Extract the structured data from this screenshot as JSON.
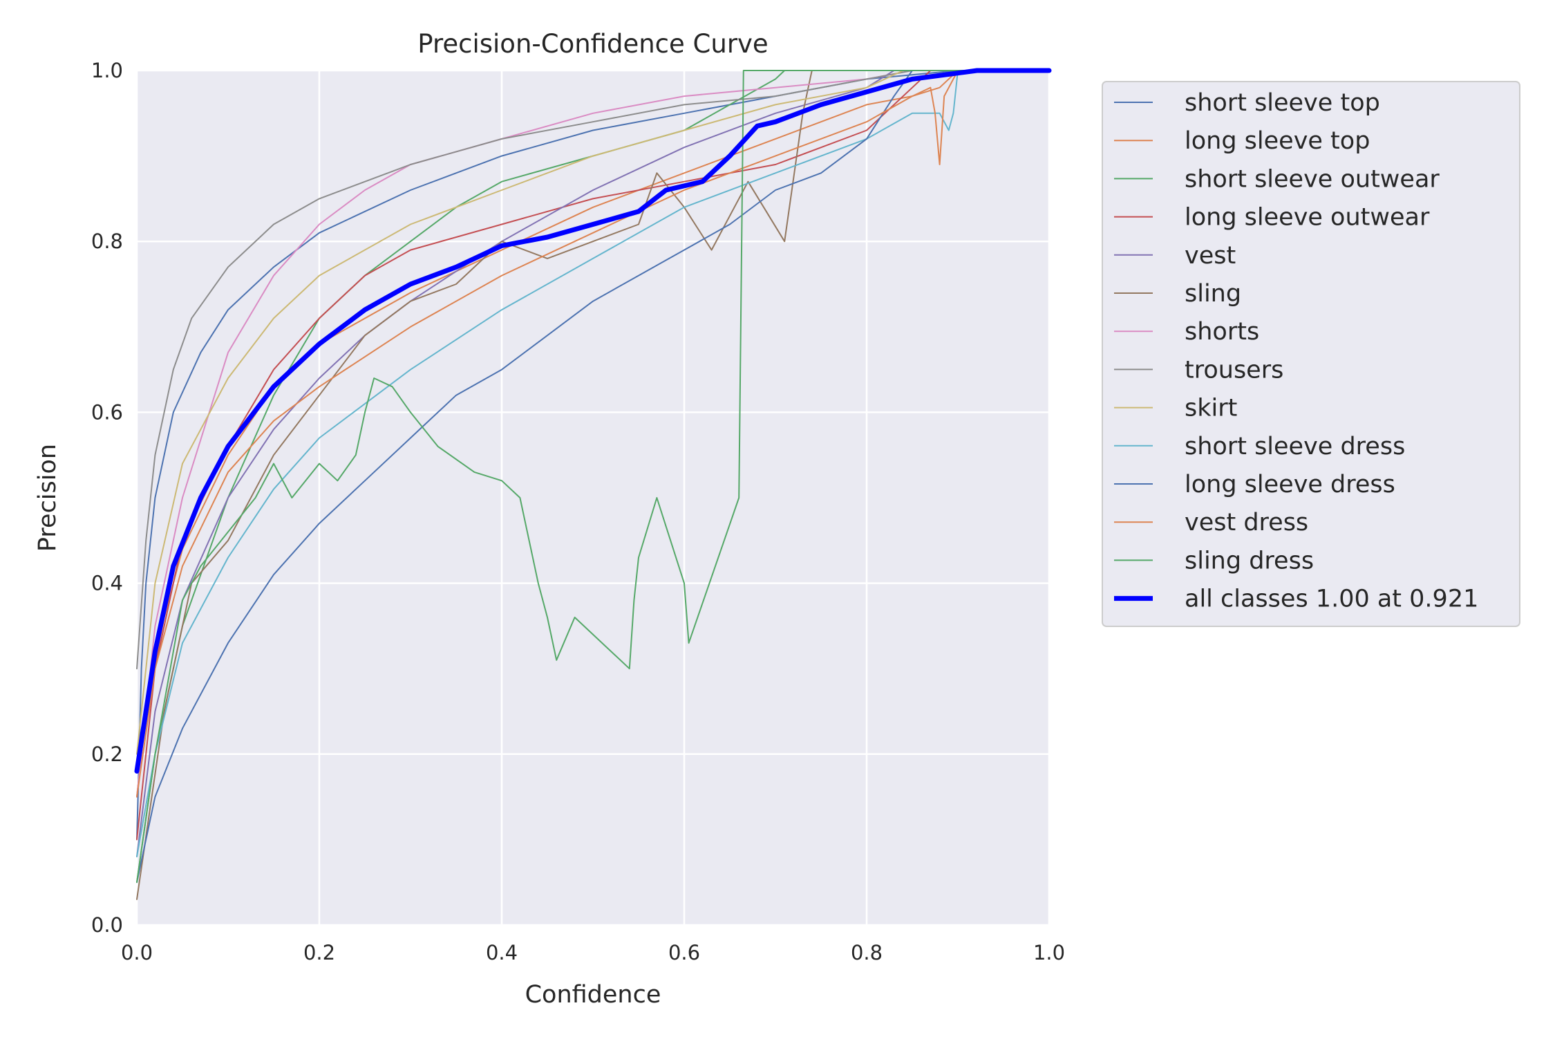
{
  "chart_data": {
    "type": "line",
    "title": "Precision-Confidence Curve",
    "xlabel": "Confidence",
    "ylabel": "Precision",
    "xlim": [
      0,
      1
    ],
    "ylim": [
      0,
      1
    ],
    "xticks": [
      "0.0",
      "0.2",
      "0.4",
      "0.6",
      "0.8",
      "1.0"
    ],
    "yticks": [
      "0.0",
      "0.2",
      "0.4",
      "0.6",
      "0.8",
      "1.0"
    ],
    "grid": true,
    "legend_position": "outside-right",
    "series": [
      {
        "name": "short sleeve top",
        "color": "#4c72b0",
        "width": 2,
        "points": [
          [
            0,
            0.1
          ],
          [
            0.005,
            0.3
          ],
          [
            0.01,
            0.4
          ],
          [
            0.02,
            0.5
          ],
          [
            0.04,
            0.6
          ],
          [
            0.07,
            0.67
          ],
          [
            0.1,
            0.72
          ],
          [
            0.15,
            0.77
          ],
          [
            0.2,
            0.81
          ],
          [
            0.3,
            0.86
          ],
          [
            0.4,
            0.9
          ],
          [
            0.5,
            0.93
          ],
          [
            0.6,
            0.95
          ],
          [
            0.7,
            0.97
          ],
          [
            0.8,
            0.99
          ],
          [
            0.9,
            1.0
          ],
          [
            1.0,
            1.0
          ]
        ]
      },
      {
        "name": "long sleeve top",
        "color": "#dd8452",
        "width": 2,
        "points": [
          [
            0,
            0.15
          ],
          [
            0.01,
            0.25
          ],
          [
            0.03,
            0.36
          ],
          [
            0.05,
            0.44
          ],
          [
            0.1,
            0.55
          ],
          [
            0.15,
            0.63
          ],
          [
            0.2,
            0.68
          ],
          [
            0.3,
            0.74
          ],
          [
            0.4,
            0.79
          ],
          [
            0.5,
            0.84
          ],
          [
            0.6,
            0.88
          ],
          [
            0.7,
            0.92
          ],
          [
            0.8,
            0.96
          ],
          [
            0.85,
            0.97
          ],
          [
            0.88,
            0.98
          ],
          [
            0.9,
            1.0
          ],
          [
            1.0,
            1.0
          ]
        ]
      },
      {
        "name": "short sleeve outwear",
        "color": "#55a868",
        "width": 2,
        "points": [
          [
            0,
            0.05
          ],
          [
            0.02,
            0.2
          ],
          [
            0.05,
            0.35
          ],
          [
            0.1,
            0.5
          ],
          [
            0.15,
            0.62
          ],
          [
            0.2,
            0.71
          ],
          [
            0.25,
            0.76
          ],
          [
            0.3,
            0.8
          ],
          [
            0.35,
            0.84
          ],
          [
            0.4,
            0.87
          ],
          [
            0.5,
            0.9
          ],
          [
            0.6,
            0.93
          ],
          [
            0.65,
            0.96
          ],
          [
            0.7,
            0.99
          ],
          [
            0.71,
            1.0
          ],
          [
            1.0,
            1.0
          ]
        ]
      },
      {
        "name": "long sleeve outwear",
        "color": "#c44e52",
        "width": 2,
        "points": [
          [
            0,
            0.1
          ],
          [
            0.02,
            0.3
          ],
          [
            0.05,
            0.45
          ],
          [
            0.1,
            0.56
          ],
          [
            0.15,
            0.65
          ],
          [
            0.2,
            0.71
          ],
          [
            0.25,
            0.76
          ],
          [
            0.3,
            0.79
          ],
          [
            0.4,
            0.82
          ],
          [
            0.5,
            0.85
          ],
          [
            0.6,
            0.87
          ],
          [
            0.7,
            0.89
          ],
          [
            0.8,
            0.93
          ],
          [
            0.85,
            0.98
          ],
          [
            0.87,
            1.0
          ],
          [
            1.0,
            1.0
          ]
        ]
      },
      {
        "name": "vest",
        "color": "#8172b3",
        "width": 2,
        "points": [
          [
            0,
            0.08
          ],
          [
            0.02,
            0.25
          ],
          [
            0.05,
            0.38
          ],
          [
            0.1,
            0.5
          ],
          [
            0.15,
            0.58
          ],
          [
            0.2,
            0.64
          ],
          [
            0.25,
            0.69
          ],
          [
            0.3,
            0.73
          ],
          [
            0.4,
            0.8
          ],
          [
            0.5,
            0.86
          ],
          [
            0.6,
            0.91
          ],
          [
            0.7,
            0.95
          ],
          [
            0.8,
            0.98
          ],
          [
            0.83,
            1.0
          ],
          [
            1.0,
            1.0
          ]
        ]
      },
      {
        "name": "sling",
        "color": "#937860",
        "width": 2,
        "points": [
          [
            0,
            0.03
          ],
          [
            0.03,
            0.25
          ],
          [
            0.06,
            0.4
          ],
          [
            0.1,
            0.45
          ],
          [
            0.15,
            0.55
          ],
          [
            0.2,
            0.62
          ],
          [
            0.25,
            0.69
          ],
          [
            0.3,
            0.73
          ],
          [
            0.35,
            0.75
          ],
          [
            0.4,
            0.8
          ],
          [
            0.45,
            0.78
          ],
          [
            0.5,
            0.8
          ],
          [
            0.55,
            0.82
          ],
          [
            0.57,
            0.88
          ],
          [
            0.6,
            0.84
          ],
          [
            0.63,
            0.79
          ],
          [
            0.67,
            0.87
          ],
          [
            0.71,
            0.8
          ],
          [
            0.73,
            0.95
          ],
          [
            0.74,
            1.0
          ],
          [
            1.0,
            1.0
          ]
        ]
      },
      {
        "name": "shorts",
        "color": "#da8bc3",
        "width": 2,
        "points": [
          [
            0,
            0.15
          ],
          [
            0.02,
            0.35
          ],
          [
            0.05,
            0.5
          ],
          [
            0.1,
            0.67
          ],
          [
            0.15,
            0.76
          ],
          [
            0.2,
            0.82
          ],
          [
            0.25,
            0.86
          ],
          [
            0.3,
            0.89
          ],
          [
            0.4,
            0.92
          ],
          [
            0.5,
            0.95
          ],
          [
            0.6,
            0.97
          ],
          [
            0.7,
            0.98
          ],
          [
            0.8,
            0.99
          ],
          [
            0.85,
            1.0
          ],
          [
            1.0,
            1.0
          ]
        ]
      },
      {
        "name": "trousers",
        "color": "#8c8c8c",
        "width": 2,
        "points": [
          [
            0,
            0.3
          ],
          [
            0.01,
            0.45
          ],
          [
            0.02,
            0.55
          ],
          [
            0.04,
            0.65
          ],
          [
            0.06,
            0.71
          ],
          [
            0.1,
            0.77
          ],
          [
            0.15,
            0.82
          ],
          [
            0.2,
            0.85
          ],
          [
            0.3,
            0.89
          ],
          [
            0.4,
            0.92
          ],
          [
            0.5,
            0.94
          ],
          [
            0.6,
            0.96
          ],
          [
            0.7,
            0.97
          ],
          [
            0.8,
            0.99
          ],
          [
            0.85,
            1.0
          ],
          [
            1.0,
            1.0
          ]
        ]
      },
      {
        "name": "skirt",
        "color": "#ccb974",
        "width": 2,
        "points": [
          [
            0,
            0.2
          ],
          [
            0.02,
            0.4
          ],
          [
            0.05,
            0.54
          ],
          [
            0.1,
            0.64
          ],
          [
            0.15,
            0.71
          ],
          [
            0.2,
            0.76
          ],
          [
            0.3,
            0.82
          ],
          [
            0.4,
            0.86
          ],
          [
            0.5,
            0.9
          ],
          [
            0.6,
            0.93
          ],
          [
            0.7,
            0.96
          ],
          [
            0.8,
            0.98
          ],
          [
            0.84,
            1.0
          ],
          [
            1.0,
            1.0
          ]
        ]
      },
      {
        "name": "short sleeve dress",
        "color": "#64b5cd",
        "width": 2,
        "points": [
          [
            0,
            0.08
          ],
          [
            0.02,
            0.2
          ],
          [
            0.05,
            0.33
          ],
          [
            0.1,
            0.43
          ],
          [
            0.15,
            0.51
          ],
          [
            0.2,
            0.57
          ],
          [
            0.3,
            0.65
          ],
          [
            0.4,
            0.72
          ],
          [
            0.5,
            0.78
          ],
          [
            0.6,
            0.84
          ],
          [
            0.7,
            0.88
          ],
          [
            0.8,
            0.92
          ],
          [
            0.85,
            0.95
          ],
          [
            0.88,
            0.95
          ],
          [
            0.89,
            0.93
          ],
          [
            0.895,
            0.95
          ],
          [
            0.9,
            1.0
          ],
          [
            1.0,
            1.0
          ]
        ]
      },
      {
        "name": "long sleeve dress",
        "color": "#4c72b0",
        "width": 2,
        "points": [
          [
            0,
            0.05
          ],
          [
            0.02,
            0.15
          ],
          [
            0.05,
            0.23
          ],
          [
            0.1,
            0.33
          ],
          [
            0.15,
            0.41
          ],
          [
            0.2,
            0.47
          ],
          [
            0.25,
            0.52
          ],
          [
            0.3,
            0.57
          ],
          [
            0.35,
            0.62
          ],
          [
            0.4,
            0.65
          ],
          [
            0.45,
            0.69
          ],
          [
            0.5,
            0.73
          ],
          [
            0.55,
            0.76
          ],
          [
            0.6,
            0.79
          ],
          [
            0.65,
            0.82
          ],
          [
            0.7,
            0.86
          ],
          [
            0.75,
            0.88
          ],
          [
            0.8,
            0.92
          ],
          [
            0.83,
            0.97
          ],
          [
            0.85,
            1.0
          ],
          [
            1.0,
            1.0
          ]
        ]
      },
      {
        "name": "vest dress",
        "color": "#dd8452",
        "width": 2,
        "points": [
          [
            0,
            0.15
          ],
          [
            0.02,
            0.3
          ],
          [
            0.05,
            0.42
          ],
          [
            0.1,
            0.53
          ],
          [
            0.15,
            0.59
          ],
          [
            0.2,
            0.63
          ],
          [
            0.3,
            0.7
          ],
          [
            0.4,
            0.76
          ],
          [
            0.5,
            0.81
          ],
          [
            0.6,
            0.86
          ],
          [
            0.7,
            0.9
          ],
          [
            0.8,
            0.94
          ],
          [
            0.85,
            0.97
          ],
          [
            0.87,
            0.98
          ],
          [
            0.875,
            0.95
          ],
          [
            0.88,
            0.89
          ],
          [
            0.885,
            0.97
          ],
          [
            0.9,
            1.0
          ],
          [
            1.0,
            1.0
          ]
        ]
      },
      {
        "name": "sling dress",
        "color": "#55a868",
        "width": 2,
        "points": [
          [
            0,
            0.05
          ],
          [
            0.02,
            0.2
          ],
          [
            0.05,
            0.38
          ],
          [
            0.07,
            0.42
          ],
          [
            0.1,
            0.46
          ],
          [
            0.13,
            0.5
          ],
          [
            0.15,
            0.54
          ],
          [
            0.17,
            0.5
          ],
          [
            0.2,
            0.54
          ],
          [
            0.22,
            0.52
          ],
          [
            0.24,
            0.55
          ],
          [
            0.25,
            0.6
          ],
          [
            0.26,
            0.64
          ],
          [
            0.28,
            0.63
          ],
          [
            0.3,
            0.6
          ],
          [
            0.33,
            0.56
          ],
          [
            0.37,
            0.53
          ],
          [
            0.4,
            0.52
          ],
          [
            0.42,
            0.5
          ],
          [
            0.43,
            0.45
          ],
          [
            0.44,
            0.4
          ],
          [
            0.45,
            0.36
          ],
          [
            0.46,
            0.31
          ],
          [
            0.48,
            0.36
          ],
          [
            0.54,
            0.3
          ],
          [
            0.545,
            0.38
          ],
          [
            0.55,
            0.43
          ],
          [
            0.57,
            0.5
          ],
          [
            0.6,
            0.4
          ],
          [
            0.605,
            0.33
          ],
          [
            0.66,
            0.5
          ],
          [
            0.665,
            1.0
          ],
          [
            1.0,
            1.0
          ]
        ]
      },
      {
        "name": "all classes 1.00 at 0.921",
        "color": "#0000ff",
        "width": 7,
        "points": [
          [
            0,
            0.18
          ],
          [
            0.01,
            0.25
          ],
          [
            0.02,
            0.32
          ],
          [
            0.04,
            0.42
          ],
          [
            0.07,
            0.5
          ],
          [
            0.1,
            0.56
          ],
          [
            0.15,
            0.63
          ],
          [
            0.2,
            0.68
          ],
          [
            0.25,
            0.72
          ],
          [
            0.3,
            0.75
          ],
          [
            0.35,
            0.77
          ],
          [
            0.4,
            0.795
          ],
          [
            0.45,
            0.805
          ],
          [
            0.5,
            0.82
          ],
          [
            0.55,
            0.835
          ],
          [
            0.58,
            0.86
          ],
          [
            0.62,
            0.87
          ],
          [
            0.65,
            0.9
          ],
          [
            0.68,
            0.935
          ],
          [
            0.7,
            0.94
          ],
          [
            0.75,
            0.96
          ],
          [
            0.8,
            0.975
          ],
          [
            0.85,
            0.99
          ],
          [
            0.9,
            0.997
          ],
          [
            0.921,
            1.0
          ],
          [
            1.0,
            1.0
          ]
        ]
      }
    ]
  }
}
